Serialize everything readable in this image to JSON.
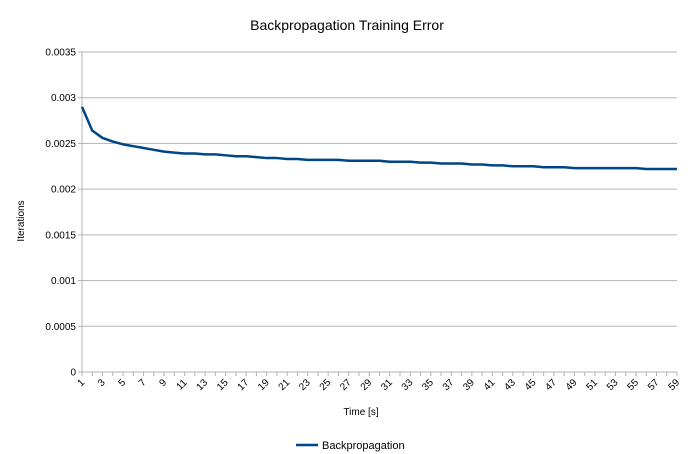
{
  "chart_data": {
    "type": "line",
    "title": "Backpropagation Training Error",
    "xlabel": "Time [s]",
    "ylabel": "Iterations",
    "x": [
      1,
      2,
      3,
      4,
      5,
      6,
      7,
      8,
      9,
      10,
      11,
      12,
      13,
      14,
      15,
      16,
      17,
      18,
      19,
      20,
      21,
      22,
      23,
      24,
      25,
      26,
      27,
      28,
      29,
      30,
      31,
      32,
      33,
      34,
      35,
      36,
      37,
      38,
      39,
      40,
      41,
      42,
      43,
      44,
      45,
      46,
      47,
      48,
      49,
      50,
      51,
      52,
      53,
      54,
      55,
      56,
      57,
      58,
      59
    ],
    "x_tick_labels": [
      "1",
      "3",
      "5",
      "7",
      "9",
      "11",
      "13",
      "15",
      "17",
      "19",
      "21",
      "23",
      "25",
      "27",
      "29",
      "31",
      "33",
      "35",
      "37",
      "39",
      "41",
      "43",
      "45",
      "47",
      "49",
      "51",
      "53",
      "55",
      "57",
      "59"
    ],
    "ylim": [
      0,
      0.0035
    ],
    "y_ticks": [
      0,
      0.0005,
      0.001,
      0.0015,
      0.002,
      0.0025,
      0.003,
      0.0035
    ],
    "y_tick_labels": [
      "0",
      "0.0005",
      "0.001",
      "0.0015",
      "0.002",
      "0.0025",
      "0.003",
      "0.0035"
    ],
    "grid": true,
    "legend_position": "bottom-center",
    "series": [
      {
        "name": "Backpropagation",
        "color": "#004586",
        "values": [
          0.0029,
          0.00264,
          0.00256,
          0.00252,
          0.00249,
          0.00247,
          0.00245,
          0.00243,
          0.00241,
          0.0024,
          0.00239,
          0.00239,
          0.00238,
          0.00238,
          0.00237,
          0.00236,
          0.00236,
          0.00235,
          0.00234,
          0.00234,
          0.00233,
          0.00233,
          0.00232,
          0.00232,
          0.00232,
          0.00232,
          0.00231,
          0.00231,
          0.00231,
          0.00231,
          0.0023,
          0.0023,
          0.0023,
          0.00229,
          0.00229,
          0.00228,
          0.00228,
          0.00228,
          0.00227,
          0.00227,
          0.00226,
          0.00226,
          0.00225,
          0.00225,
          0.00225,
          0.00224,
          0.00224,
          0.00224,
          0.00223,
          0.00223,
          0.00223,
          0.00223,
          0.00223,
          0.00223,
          0.00223,
          0.00222,
          0.00222,
          0.00222,
          0.00222
        ]
      }
    ]
  }
}
